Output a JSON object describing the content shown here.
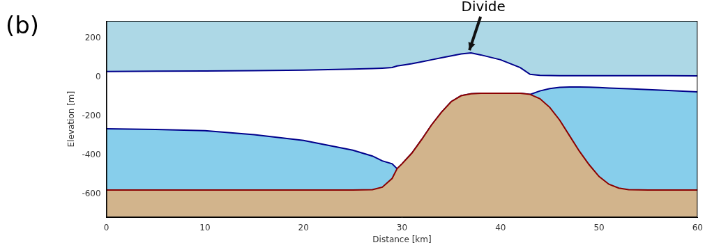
{
  "chart_data": {
    "type": "line",
    "title": "(b)",
    "x_label": "Distance [km]",
    "y_label": "Elevation [m]",
    "x": [
      0,
      5,
      10,
      15,
      20,
      25,
      27,
      28,
      29,
      29.5,
      30,
      31,
      32,
      33,
      34,
      35,
      36,
      37,
      38,
      40,
      42,
      43,
      44,
      45,
      46,
      47,
      48,
      49,
      50,
      51,
      52,
      53,
      55,
      57,
      60
    ],
    "series": [
      {
        "color": "#8b0000",
        "values": [
          -580,
          -580,
          -580,
          -580,
          -580,
          -580,
          -578,
          -565,
          -520,
          -470,
          -445,
          -390,
          -320,
          -245,
          -180,
          -125,
          -95,
          -85,
          -82,
          -82,
          -82,
          -88,
          -110,
          -155,
          -220,
          -300,
          -380,
          -450,
          -510,
          -550,
          -570,
          -578,
          -580,
          -580,
          -580
        ]
      },
      {
        "color": "#00008b",
        "values": [
          -265,
          -268,
          -275,
          -295,
          -325,
          -375,
          -405,
          -430,
          -445,
          -470,
          -445,
          -390,
          -320,
          -245,
          -180,
          -125,
          -95,
          -85,
          -82,
          -82,
          -82,
          -88,
          -70,
          -58,
          -52,
          -50,
          -50,
          -51,
          -53,
          -55,
          -57,
          -59,
          -63,
          -68,
          -75
        ]
      },
      {
        "color": "#00008b",
        "values": [
          30,
          31,
          32,
          34,
          37,
          42,
          45,
          47,
          50,
          58,
          62,
          70,
          80,
          90,
          100,
          110,
          120,
          125,
          115,
          90,
          50,
          15,
          10,
          9,
          8,
          8,
          8,
          8,
          8,
          8,
          8,
          8,
          8,
          8,
          7
        ]
      }
    ],
    "xlim": [
      0,
      60
    ],
    "xticks": [
      0,
      10,
      20,
      30,
      40,
      50,
      60
    ],
    "ylim": [
      -720,
      290
    ],
    "yticks": [
      -600,
      -400,
      -200,
      0,
      200
    ],
    "grid": false,
    "annotations": [
      {
        "text": "Divide",
        "x": 36.7,
        "y": 125
      }
    ]
  }
}
